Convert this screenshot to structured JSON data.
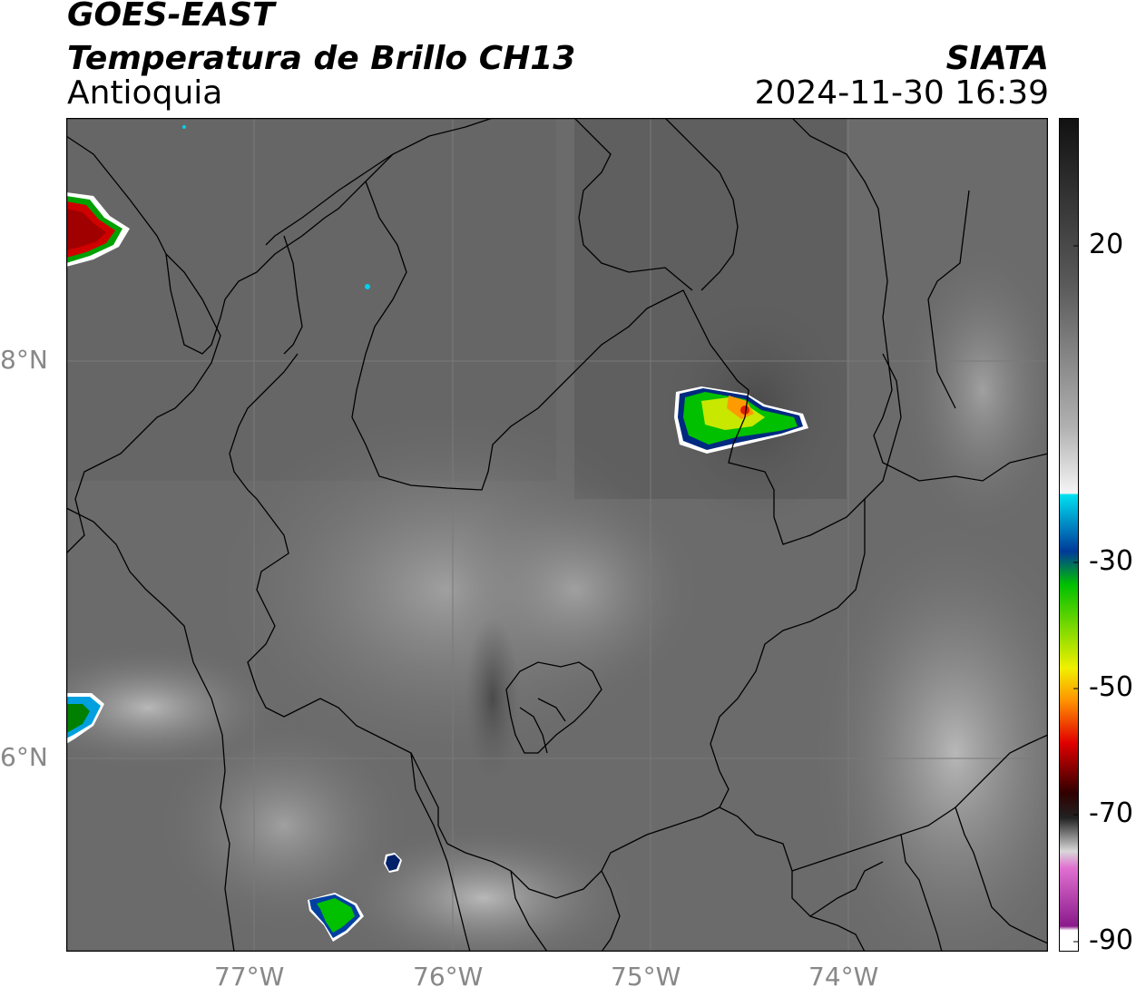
{
  "header": {
    "satellite": "GOES-EAST",
    "product": "Temperatura de Brillo CH13",
    "region": "Antioquia",
    "agency": "SIATA",
    "datetime": "2024-11-30 16:39"
  },
  "axes": {
    "lon_ticks": [
      "77°W",
      "76°W",
      "75°W",
      "74°W"
    ],
    "lat_ticks": [
      "8°N",
      "6°N"
    ]
  },
  "colorbar": {
    "labels": [
      "20",
      "-30",
      "-50",
      "-70",
      "-90"
    ],
    "palette": {
      "gray_dark": "#111111",
      "gray_light": "#f5f5f5",
      "cyan": "#00e0f0",
      "blue": "#003a9a",
      "green": "#00c000",
      "yellow": "#f0f000",
      "orange": "#ff9000",
      "red": "#e00000",
      "magenta": "#d040d0",
      "purple": "#8a1a8a"
    }
  }
}
